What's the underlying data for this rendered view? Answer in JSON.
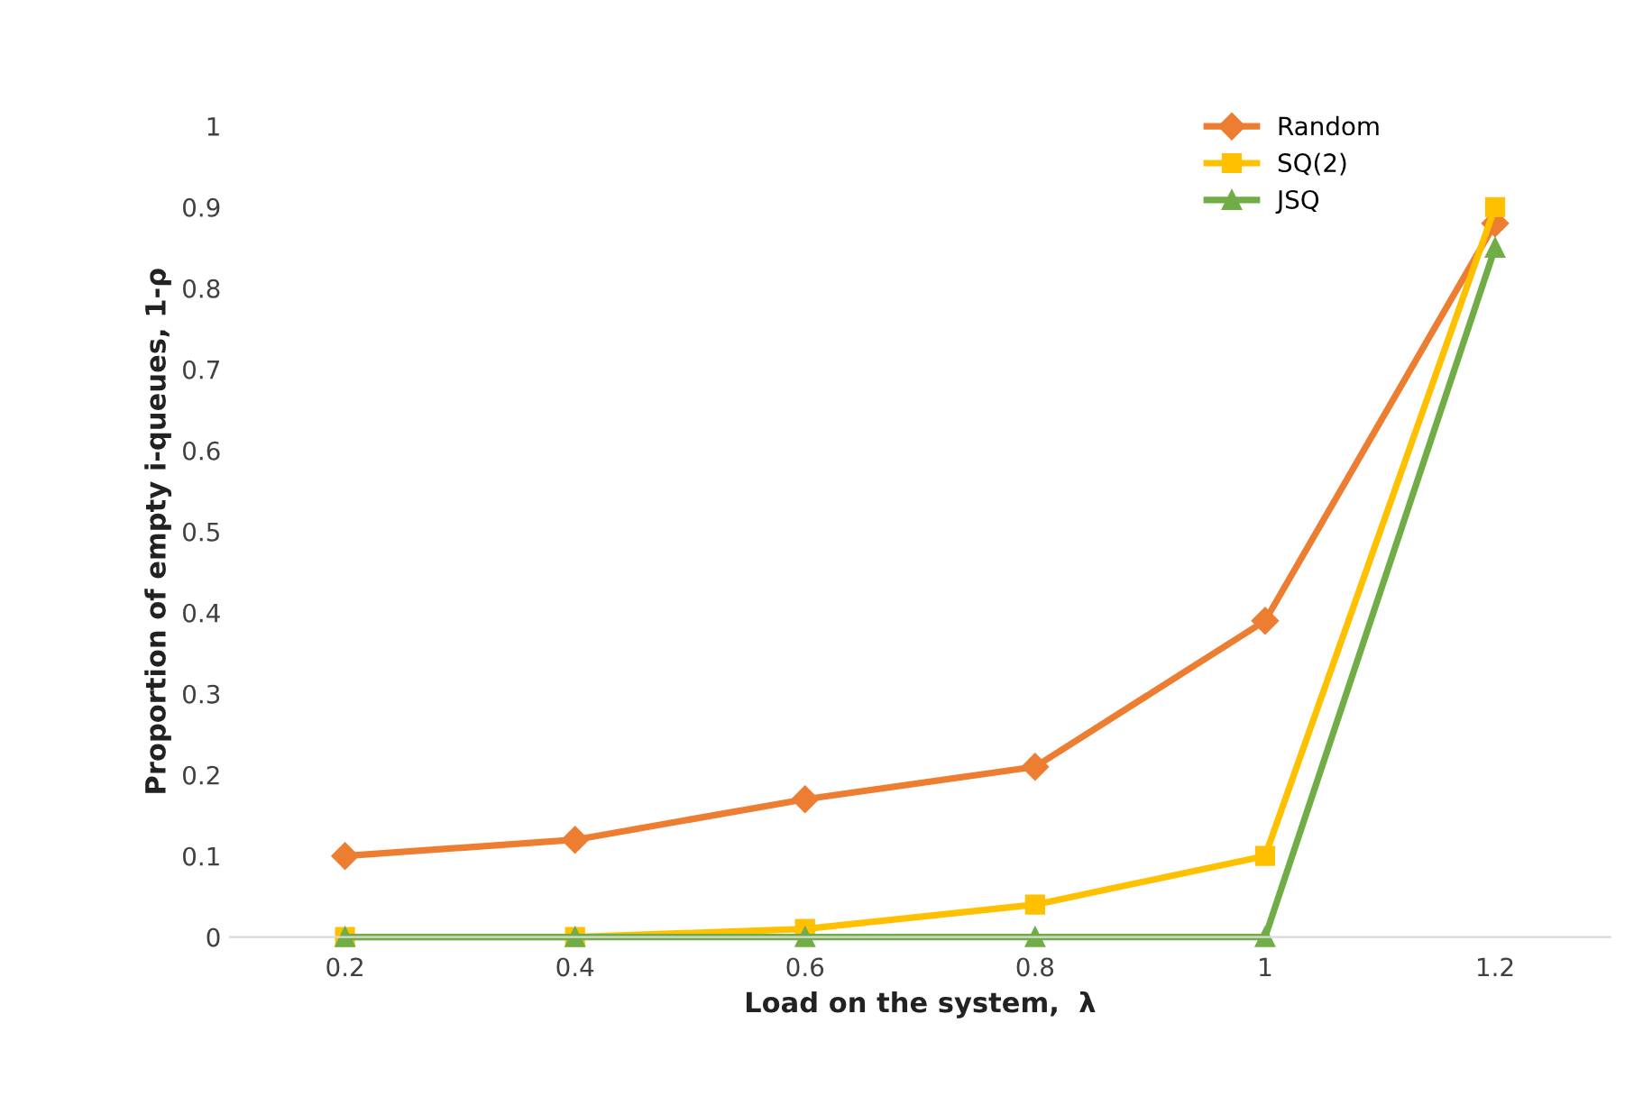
{
  "chart_data": {
    "type": "line",
    "xlabel": "Load on the system,  λ",
    "ylabel": "Proportion of empty i-queues, 1-ρ",
    "categories": [
      "0.2",
      "0.4",
      "0.6",
      "0.8",
      "1",
      "1.2"
    ],
    "series": [
      {
        "name": "Random",
        "color": "#ed7d31",
        "marker": "diamond",
        "values": [
          0.1,
          0.12,
          0.17,
          0.21,
          0.39,
          0.88
        ]
      },
      {
        "name": "SQ(2)",
        "color": "#ffc000",
        "marker": "square",
        "values": [
          0,
          0,
          0.01,
          0.04,
          0.1,
          0.9
        ]
      },
      {
        "name": "JSQ",
        "color": "#70ad47",
        "marker": "triangle",
        "values": [
          0,
          0,
          0,
          0,
          0,
          0.85
        ]
      }
    ],
    "ylim": [
      0,
      1
    ],
    "yticks": [
      0,
      0.1,
      0.2,
      0.3,
      0.4,
      0.5,
      0.6,
      0.7,
      0.8,
      0.9,
      1
    ],
    "grid": false,
    "legend": "top right",
    "line_style": "solid"
  }
}
